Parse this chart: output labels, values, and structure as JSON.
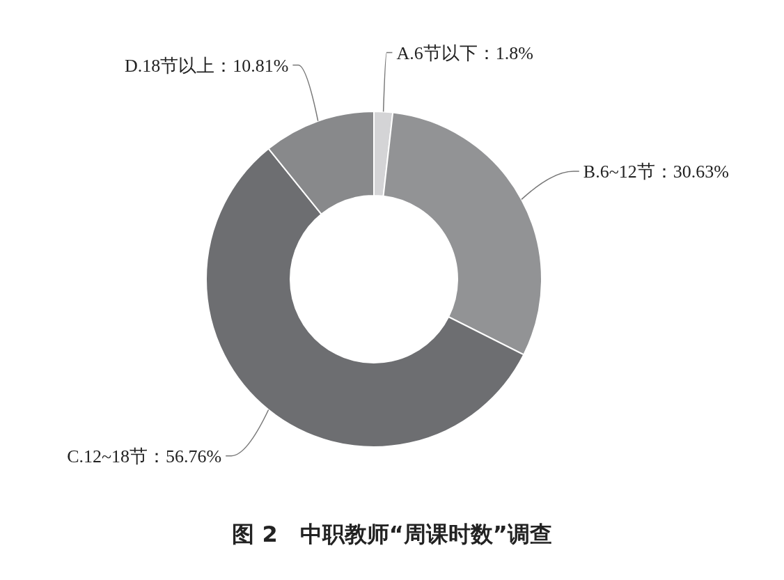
{
  "chart_data": {
    "type": "donut",
    "title": "图 2　中职教师“周课时数”调查",
    "categories": [
      "A.6节以下",
      "B.6~12节",
      "C.12~18节",
      "D.18节以上"
    ],
    "values": [
      1.8,
      30.63,
      56.76,
      10.81
    ],
    "value_labels": [
      "1.8%",
      "30.63%",
      "56.76%",
      "10.81%"
    ],
    "colors": [
      "#d4d4d6",
      "#929395",
      "#6d6e71",
      "#88898b"
    ]
  }
}
